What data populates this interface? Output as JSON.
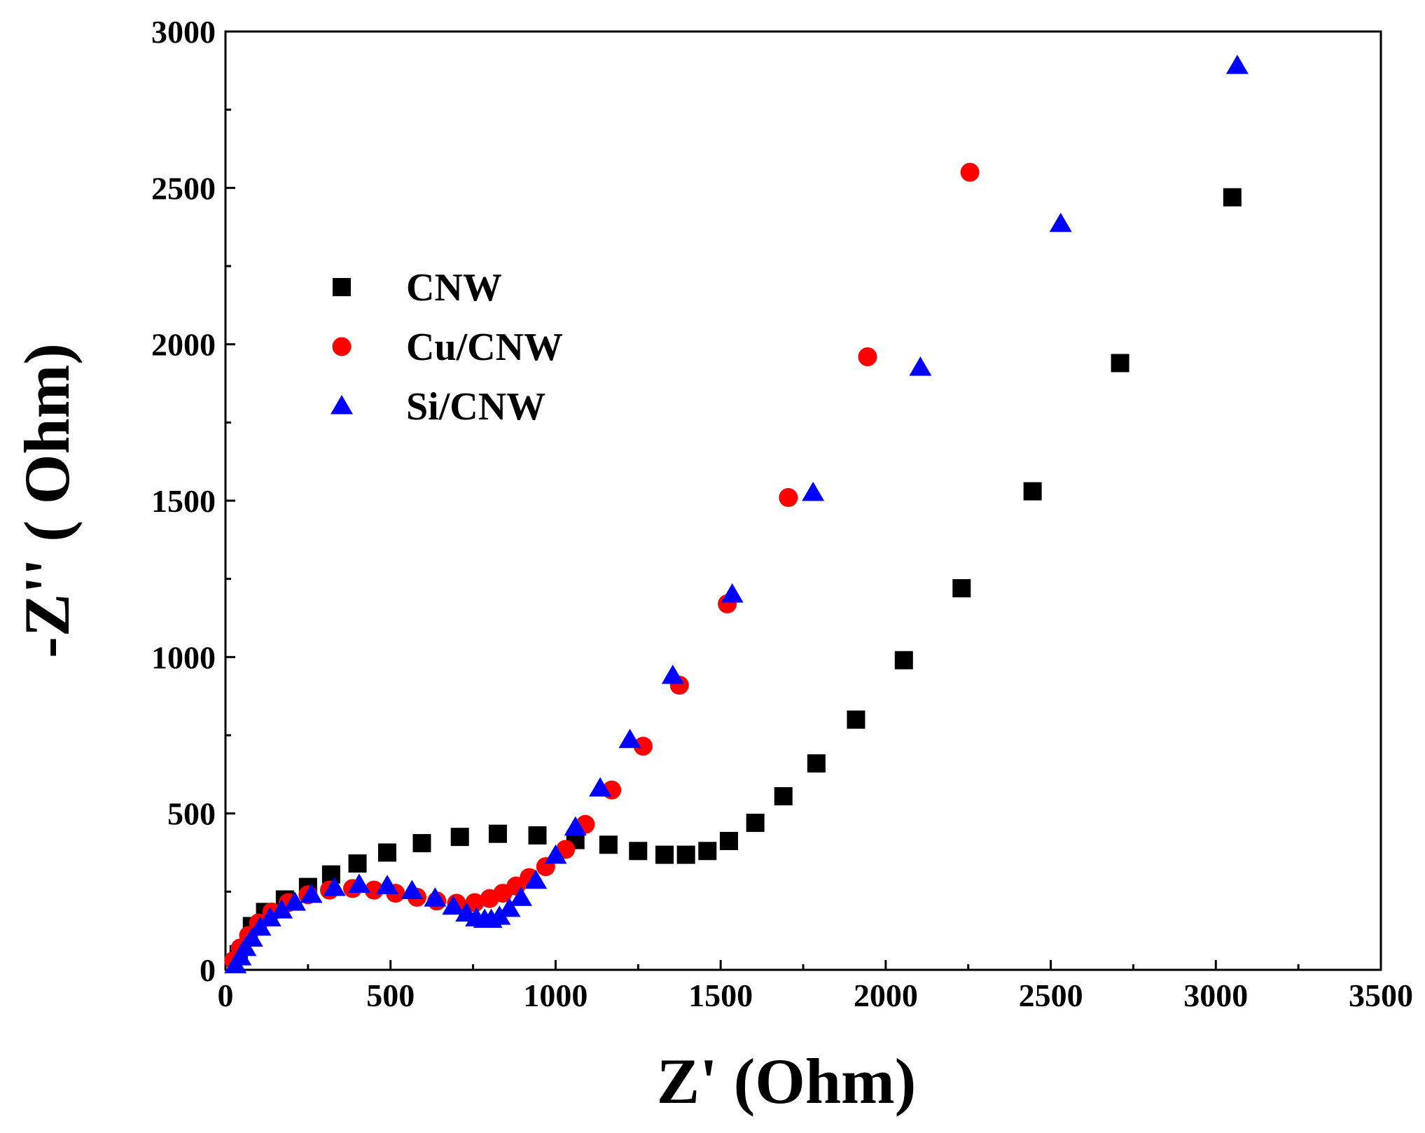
{
  "chart_data": {
    "type": "scatter",
    "title": "",
    "xlabel": "Z' (Ohm)",
    "ylabel": "-Z'' ( Ohm)",
    "xlim": [
      0,
      3500
    ],
    "ylim": [
      0,
      3000
    ],
    "xticks": [
      0,
      500,
      1000,
      1500,
      2000,
      2500,
      3000,
      3500
    ],
    "yticks": [
      0,
      500,
      1000,
      1500,
      2000,
      2500,
      3000
    ],
    "grid": false,
    "legend_position": "upper-left",
    "series": [
      {
        "name": "CNW",
        "marker": "square",
        "color": "#000000",
        "points": [
          [
            40,
            50
          ],
          [
            80,
            140
          ],
          [
            120,
            185
          ],
          [
            180,
            225
          ],
          [
            250,
            265
          ],
          [
            320,
            305
          ],
          [
            400,
            340
          ],
          [
            490,
            375
          ],
          [
            595,
            405
          ],
          [
            710,
            425
          ],
          [
            825,
            435
          ],
          [
            945,
            430
          ],
          [
            1060,
            415
          ],
          [
            1160,
            400
          ],
          [
            1250,
            380
          ],
          [
            1330,
            368
          ],
          [
            1395,
            368
          ],
          [
            1460,
            380
          ],
          [
            1525,
            412
          ],
          [
            1605,
            470
          ],
          [
            1690,
            555
          ],
          [
            1790,
            660
          ],
          [
            1910,
            800
          ],
          [
            2055,
            990
          ],
          [
            2230,
            1220
          ],
          [
            2445,
            1530
          ],
          [
            2710,
            1940
          ],
          [
            3050,
            2470
          ]
        ]
      },
      {
        "name": "Cu/CNW",
        "marker": "circle",
        "color": "#ff0000",
        "points": [
          [
            25,
            30
          ],
          [
            45,
            70
          ],
          [
            70,
            110
          ],
          [
            100,
            150
          ],
          [
            140,
            185
          ],
          [
            190,
            215
          ],
          [
            250,
            240
          ],
          [
            315,
            255
          ],
          [
            385,
            260
          ],
          [
            450,
            255
          ],
          [
            515,
            245
          ],
          [
            580,
            232
          ],
          [
            640,
            220
          ],
          [
            700,
            213
          ],
          [
            755,
            215
          ],
          [
            800,
            228
          ],
          [
            840,
            245
          ],
          [
            880,
            268
          ],
          [
            920,
            295
          ],
          [
            970,
            330
          ],
          [
            1030,
            385
          ],
          [
            1090,
            465
          ],
          [
            1170,
            575
          ],
          [
            1265,
            715
          ],
          [
            1375,
            910
          ],
          [
            1520,
            1170
          ],
          [
            1705,
            1510
          ],
          [
            1945,
            1960
          ],
          [
            2255,
            2550
          ]
        ]
      },
      {
        "name": "Si/CNW",
        "marker": "triangle",
        "color": "#0000ff",
        "points": [
          [
            30,
            15
          ],
          [
            45,
            40
          ],
          [
            60,
            70
          ],
          [
            80,
            100
          ],
          [
            105,
            135
          ],
          [
            135,
            165
          ],
          [
            170,
            190
          ],
          [
            210,
            215
          ],
          [
            260,
            240
          ],
          [
            330,
            262
          ],
          [
            405,
            272
          ],
          [
            490,
            268
          ],
          [
            565,
            252
          ],
          [
            635,
            228
          ],
          [
            690,
            202
          ],
          [
            730,
            180
          ],
          [
            760,
            165
          ],
          [
            785,
            160
          ],
          [
            805,
            160
          ],
          [
            830,
            170
          ],
          [
            860,
            195
          ],
          [
            895,
            230
          ],
          [
            940,
            285
          ],
          [
            1000,
            365
          ],
          [
            1060,
            455
          ],
          [
            1135,
            580
          ],
          [
            1225,
            735
          ],
          [
            1355,
            940
          ],
          [
            1535,
            1200
          ],
          [
            1780,
            1525
          ],
          [
            2105,
            1925
          ],
          [
            2530,
            2385
          ],
          [
            3065,
            2890
          ]
        ]
      }
    ]
  }
}
